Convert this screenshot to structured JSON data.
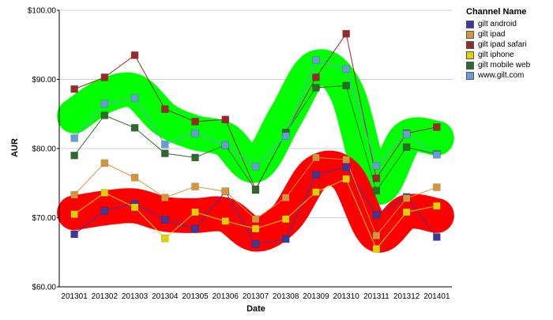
{
  "chart_data": {
    "type": "line",
    "xlabel": "Date",
    "ylabel": "AUR",
    "ylim": [
      60,
      100
    ],
    "yticks": [
      "$60.00",
      "$70.00",
      "$80.00",
      "$90.00",
      "$100.00"
    ],
    "ytick_values": [
      60,
      70,
      80,
      90,
      100
    ],
    "categories": [
      "201301",
      "201302",
      "201303",
      "201304",
      "201305",
      "201306",
      "201307",
      "201308",
      "201309",
      "201310",
      "201311",
      "201312",
      "201401"
    ],
    "grid": "horizontal",
    "legend_position": "top-right",
    "legend_title": "Channel Name",
    "series": [
      {
        "name": "gilt android",
        "color": "#3a3a9e",
        "values": [
          67.6,
          71.0,
          72.0,
          69.7,
          68.4,
          73.8,
          66.2,
          66.9,
          76.2,
          77.3,
          70.4,
          73.0,
          67.2
        ]
      },
      {
        "name": "gilt ipad",
        "color": "#d4963c",
        "values": [
          73.3,
          77.9,
          75.8,
          72.9,
          74.5,
          73.8,
          69.8,
          72.9,
          78.7,
          78.4,
          67.4,
          72.8,
          74.4
        ]
      },
      {
        "name": "gilt ipad safari",
        "color": "#9a2a2a",
        "values": [
          88.6,
          90.3,
          93.5,
          85.7,
          83.9,
          84.2,
          74.1,
          82.3,
          90.3,
          96.6,
          75.7,
          82.2,
          83.1
        ]
      },
      {
        "name": "gilt iphone",
        "color": "#e0d000",
        "values": [
          70.5,
          73.6,
          71.5,
          67.0,
          70.8,
          69.5,
          68.4,
          69.8,
          73.7,
          75.6,
          65.5,
          70.8,
          71.7
        ]
      },
      {
        "name": "gilt mobile web",
        "color": "#2d6b2d",
        "values": [
          79.0,
          84.8,
          83.0,
          79.3,
          78.7,
          80.5,
          74.0,
          82.3,
          88.8,
          89.1,
          73.9,
          80.2,
          79.2
        ]
      },
      {
        "name": "www.gilt.com",
        "color": "#6a9bd8",
        "values": [
          81.5,
          86.5,
          87.3,
          80.6,
          82.2,
          80.5,
          77.4,
          81.8,
          92.8,
          91.5,
          77.5,
          82.1,
          79.1
        ]
      }
    ],
    "highlight_bands": [
      {
        "color": "#00ff00",
        "values": [
          84.7,
          87.6,
          88.3,
          84.2,
          82.3,
          81.3,
          77.6,
          84.7,
          91.7,
          88.3,
          74.5,
          81.5,
          81.5
        ]
      },
      {
        "color": "#ff0000",
        "values": [
          70.7,
          71.4,
          71.7,
          70.5,
          70.3,
          70.4,
          67.6,
          70.0,
          76.5,
          76.0,
          67.6,
          70.8,
          70.3
        ]
      }
    ]
  }
}
